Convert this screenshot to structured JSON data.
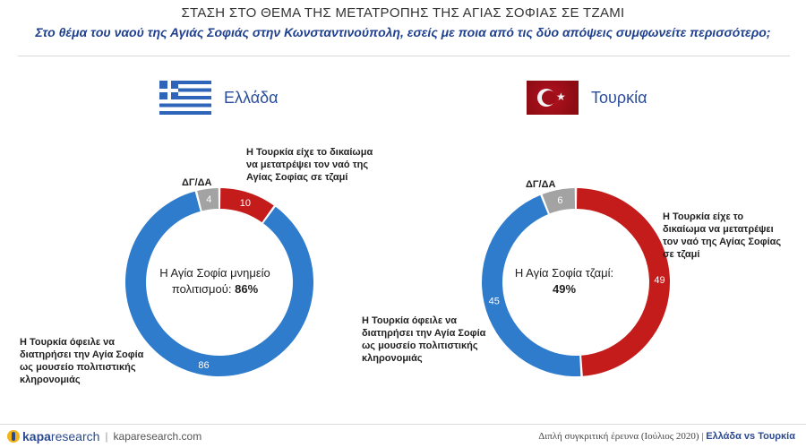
{
  "header": {
    "title": "ΣΤΑΣΗ ΣΤΟ ΘΕΜΑ ΤΗΣ ΜΕΤΑΤΡΟΠΗΣ ΤΗΣ ΑΓΙΑΣ ΣΟΦΙΑΣ ΣΕ ΤΖΑΜΙ",
    "subtitle": "Στο θέμα του ναού της Αγιάς Σοφιάς στην Κωνσταντινούπολη, εσείς με ποια από τις δύο απόψεις συμφωνείτε περισσότερο;"
  },
  "colors": {
    "blue": "#2f7ccc",
    "red": "#c41b1b",
    "gray": "#a3a3a3",
    "title_blue": "#1f3f8f"
  },
  "greece": {
    "country": "Ελλάδα",
    "flag_icon": "greek-flag-icon",
    "dk_label": "ΔΓ/ΔΑ",
    "annot_red": "Η Τουρκία είχε το δικαίωμα να μετατρέψει τον ναό της Αγίας Σοφίας σε τζαμί",
    "annot_blue": "Η Τουρκία όφειλε να διατηρήσει την Αγία Σοφία ως μουσείο πολιτιστικής κληρονομιάς",
    "center_text": "Η Αγία Σοφία μνημείο πολιτισμού:",
    "center_value": "86%"
  },
  "turkey": {
    "country": "Τουρκία",
    "flag_icon": "turkish-flag-icon",
    "dk_label": "ΔΓ/ΔΑ",
    "annot_red": "Η Τουρκία είχε το δικαίωμα να μετατρέψει τον ναό της Αγίας Σοφίας σε τζαμί",
    "annot_blue": "Η Τουρκία όφειλε να διατηρήσει την Αγία Σοφία ως μουσείο πολιτιστικής κληρονομιάς",
    "center_text": "Η Αγία Σοφία τζαμί:",
    "center_value": "49%"
  },
  "chart_data": [
    {
      "type": "pie",
      "title": "Ελλάδα",
      "categories": [
        "Η Τουρκία είχε το δικαίωμα να μετατρέψει τον ναό της Αγίας Σοφίας σε τζαμί",
        "Η Τουρκία όφειλε να διατηρήσει την Αγία Σοφία ως μουσείο πολιτιστικής κληρονομιάς",
        "ΔΓ/ΔΑ"
      ],
      "values": [
        10,
        86,
        4
      ],
      "colors": [
        "#c41b1b",
        "#2f7ccc",
        "#a3a3a3"
      ]
    },
    {
      "type": "pie",
      "title": "Τουρκία",
      "categories": [
        "Η Τουρκία είχε το δικαίωμα να μετατρέψει τον ναό της Αγίας Σοφίας σε τζαμί",
        "Η Τουρκία όφειλε να διατηρήσει την Αγία Σοφία ως μουσείο πολιτιστικής κληρονομιάς",
        "ΔΓ/ΔΑ"
      ],
      "values": [
        49,
        45,
        6
      ],
      "colors": [
        "#c41b1b",
        "#2f7ccc",
        "#a3a3a3"
      ]
    }
  ],
  "footer": {
    "brand_a": "kapa",
    "brand_b": "research",
    "site": "kaparesearch.com",
    "study": "Διπλή συγκριτική έρευνα (Ιούλιος 2020)",
    "divider": "|",
    "comparison": "Ελλάδα vs Τουρκία"
  }
}
